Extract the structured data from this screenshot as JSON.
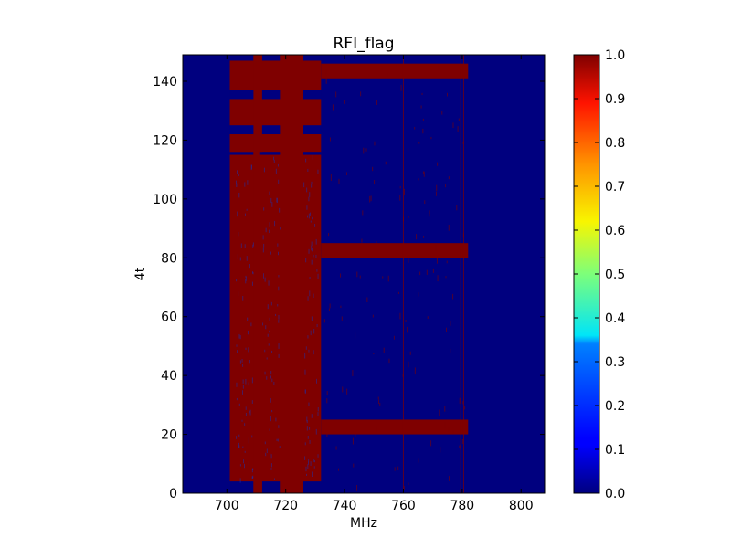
{
  "chart_data": {
    "type": "heatmap",
    "title": "RFI_flag",
    "xlabel": "MHz",
    "ylabel": "4t",
    "xlim": [
      685,
      808
    ],
    "ylim": [
      0,
      149
    ],
    "x_ticks": [
      700,
      720,
      740,
      760,
      780,
      800
    ],
    "y_ticks": [
      0,
      20,
      40,
      60,
      80,
      100,
      120,
      140
    ],
    "colorbar": {
      "range": [
        0.0,
        1.0
      ],
      "ticks": [
        "0.0",
        "0.1",
        "0.2",
        "0.3",
        "0.4",
        "0.5",
        "0.6",
        "0.7",
        "0.8",
        "0.9",
        "1.0"
      ],
      "colormap": "jet"
    },
    "background_value": 0.0,
    "flag_value": 1.0,
    "colors": {
      "unflagged": "#00007f",
      "flagged": "#7f0000"
    },
    "flagged_regions": [
      {
        "x": [
          701,
          732
        ],
        "y": [
          4,
          115
        ]
      },
      {
        "x": [
          701,
          732
        ],
        "y": [
          116,
          122
        ]
      },
      {
        "x": [
          701,
          732
        ],
        "y": [
          125,
          134
        ]
      },
      {
        "x": [
          701,
          732
        ],
        "y": [
          137,
          147
        ]
      },
      {
        "x": [
          709,
          712
        ],
        "y": [
          0,
          149
        ]
      },
      {
        "x": [
          718,
          726
        ],
        "y": [
          0,
          149
        ]
      },
      {
        "x": [
          732,
          782
        ],
        "y": [
          20,
          25
        ]
      },
      {
        "x": [
          732,
          782
        ],
        "y": [
          80,
          85
        ]
      },
      {
        "x": [
          732,
          782
        ],
        "y": [
          141,
          146
        ]
      }
    ],
    "unflagged_gaps": [
      {
        "x": [
          711,
          718
        ],
        "y": [
          115,
          116
        ]
      },
      {
        "x": [
          726,
          732
        ],
        "y": [
          115,
          116
        ]
      },
      {
        "x": [
          701,
          709
        ],
        "y": [
          122,
          125
        ]
      },
      {
        "x": [
          712,
          718
        ],
        "y": [
          122,
          125
        ]
      },
      {
        "x": [
          726,
          732
        ],
        "y": [
          122,
          125
        ]
      },
      {
        "x": [
          701,
          709
        ],
        "y": [
          134,
          137
        ]
      },
      {
        "x": [
          712,
          718
        ],
        "y": [
          134,
          137
        ]
      },
      {
        "x": [
          726,
          732
        ],
        "y": [
          134,
          137
        ]
      }
    ],
    "narrow_flagged_channels": [
      760,
      779.5,
      780.5
    ]
  }
}
